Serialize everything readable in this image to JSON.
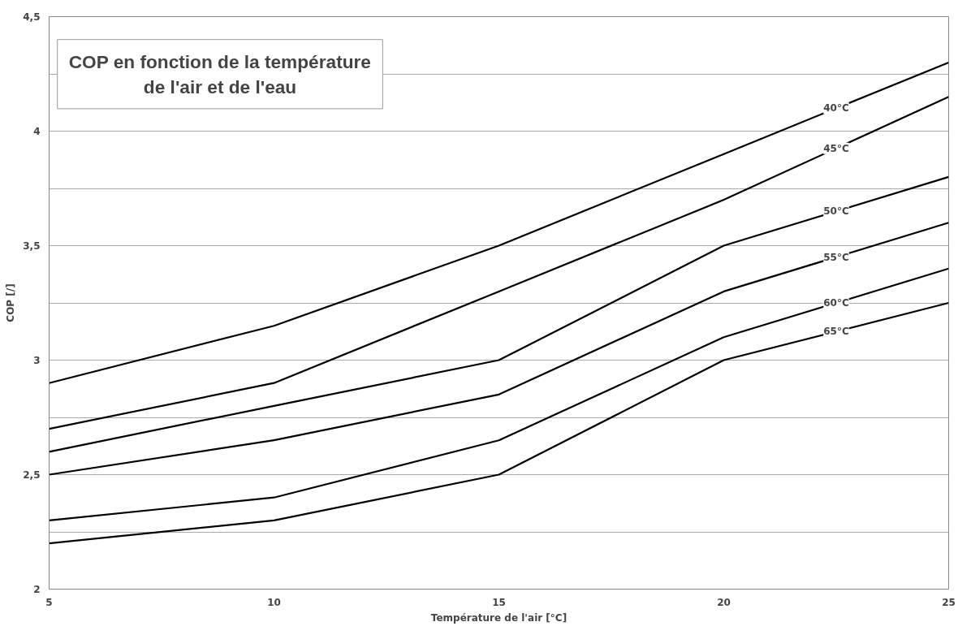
{
  "chart_data": {
    "type": "line",
    "title": "COP en fonction de la température\nde l'air et de l'eau",
    "xlabel": "Température de l'air [°C]",
    "ylabel": "COP [/]",
    "x": [
      5,
      10,
      15,
      20,
      25
    ],
    "series": [
      {
        "name": "40°C",
        "color": "#000000",
        "values": [
          2.9,
          3.15,
          3.5,
          3.9,
          4.3
        ]
      },
      {
        "name": "45°C",
        "color": "#000000",
        "values": [
          2.7,
          2.9,
          3.3,
          3.7,
          4.15
        ]
      },
      {
        "name": "50°C",
        "color": "#000000",
        "values": [
          2.6,
          2.8,
          3.0,
          3.5,
          3.8
        ]
      },
      {
        "name": "55°C",
        "color": "#000000",
        "values": [
          2.5,
          2.65,
          2.85,
          3.3,
          3.6
        ]
      },
      {
        "name": "60°C",
        "color": "#000000",
        "values": [
          2.3,
          2.4,
          2.65,
          3.1,
          3.4
        ]
      },
      {
        "name": "65°C",
        "color": "#000000",
        "values": [
          2.2,
          2.3,
          2.5,
          3.0,
          3.25
        ]
      }
    ],
    "xlim": [
      5,
      25
    ],
    "xticks": [
      5,
      10,
      15,
      20,
      25
    ],
    "ylim": [
      2,
      4.5
    ],
    "yticks": [
      2,
      {
        "value": 2.25,
        "label": null
      },
      {
        "value": 2.5,
        "label": "2,5"
      },
      {
        "value": 2.75,
        "label": null
      },
      3,
      {
        "value": 3.25,
        "label": null
      },
      {
        "value": 3.5,
        "label": "3,5"
      },
      {
        "value": 3.75,
        "label": null
      },
      4,
      {
        "value": 4.25,
        "label": null
      },
      {
        "value": 4.5,
        "label": "4,5"
      }
    ],
    "grid": "y",
    "marker": "none",
    "line_style": "solid"
  }
}
